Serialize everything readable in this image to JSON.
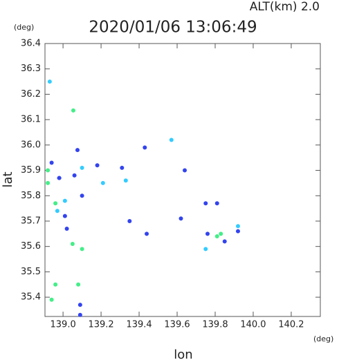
{
  "chart_data": {
    "type": "scatter",
    "title": "2020/01/06 13:06:49",
    "subtitle": "ALT(km) 2.0",
    "y_unit": "(deg)",
    "x_unit": "(deg)",
    "xlabel": "lon",
    "ylabel": "lat",
    "xlim": [
      138.905,
      140.353
    ],
    "ylim": [
      35.324,
      36.4
    ],
    "xticks": [
      {
        "value": 139.0,
        "label": "139.0"
      },
      139.2,
      139.4,
      139.6,
      139.8,
      {
        "value": 140.0,
        "label": "140.0"
      },
      140.2
    ],
    "yticks": [
      35.4,
      35.5,
      35.6,
      35.7,
      35.8,
      35.9,
      {
        "value": 36.0,
        "label": "36.0"
      },
      36.1,
      36.2,
      36.3,
      36.4
    ],
    "series": [
      {
        "color": "#3344ee",
        "x": [
          138.98,
          139.076,
          138.94,
          138.98,
          139.06,
          139.18,
          139.31,
          139.01,
          139.1,
          139.02,
          139.09,
          139.09,
          139.43,
          139.75,
          139.81,
          139.35,
          139.44,
          139.62,
          139.76,
          139.92,
          139.85,
          139.64
        ],
        "y": [
          35.87,
          35.98,
          35.93,
          35.87,
          35.88,
          35.92,
          35.91,
          35.72,
          35.8,
          35.67,
          35.37,
          35.33,
          35.99,
          35.77,
          35.77,
          35.7,
          35.65,
          35.71,
          35.65,
          35.66,
          35.62,
          35.9
        ]
      },
      {
        "color": "#33ccff",
        "x": [
          138.93,
          139.1,
          139.01,
          138.97,
          139.92,
          139.75,
          139.21,
          139.33,
          139.57
        ],
        "y": [
          36.25,
          35.91,
          35.78,
          35.74,
          35.68,
          35.59,
          35.85,
          35.86,
          36.02
        ]
      },
      {
        "color": "#44ee88",
        "x": [
          139.054,
          138.92,
          138.92,
          138.96,
          139.05,
          139.1,
          138.96,
          139.08,
          138.94,
          139.81,
          139.83
        ],
        "y": [
          36.136,
          35.9,
          35.85,
          35.77,
          35.61,
          35.59,
          35.45,
          35.45,
          35.39,
          35.64,
          35.65
        ]
      }
    ]
  }
}
